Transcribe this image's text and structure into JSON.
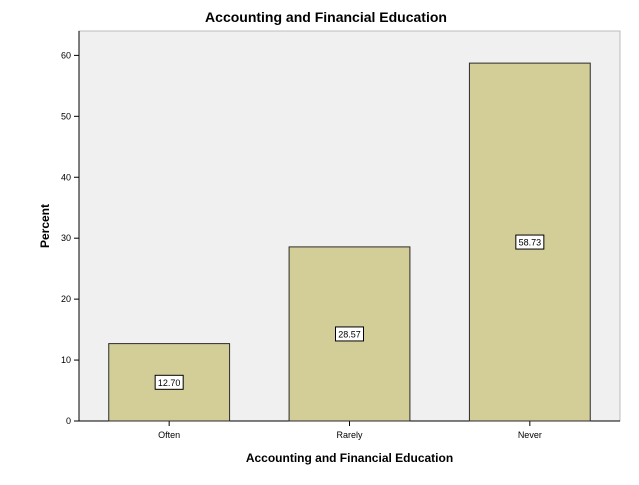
{
  "chart_data": {
    "type": "bar",
    "title": "Accounting and Financial Education",
    "xlabel": "Accounting and Financial Education",
    "ylabel": "Percent",
    "categories": [
      "Often",
      "Rarely",
      "Never"
    ],
    "values": [
      12.7,
      28.57,
      58.73
    ],
    "data_labels": [
      "12.70",
      "28.57",
      "58.73"
    ],
    "ylim": [
      0,
      64
    ],
    "yticks": [
      0,
      10,
      20,
      30,
      40,
      50,
      60
    ],
    "grid": false,
    "legend": "none",
    "colors": {
      "bar_fill": "#d3ce98",
      "bar_stroke": "#2b2b2b",
      "plot_background": "#f0f0f0",
      "axis": "#000000"
    }
  }
}
